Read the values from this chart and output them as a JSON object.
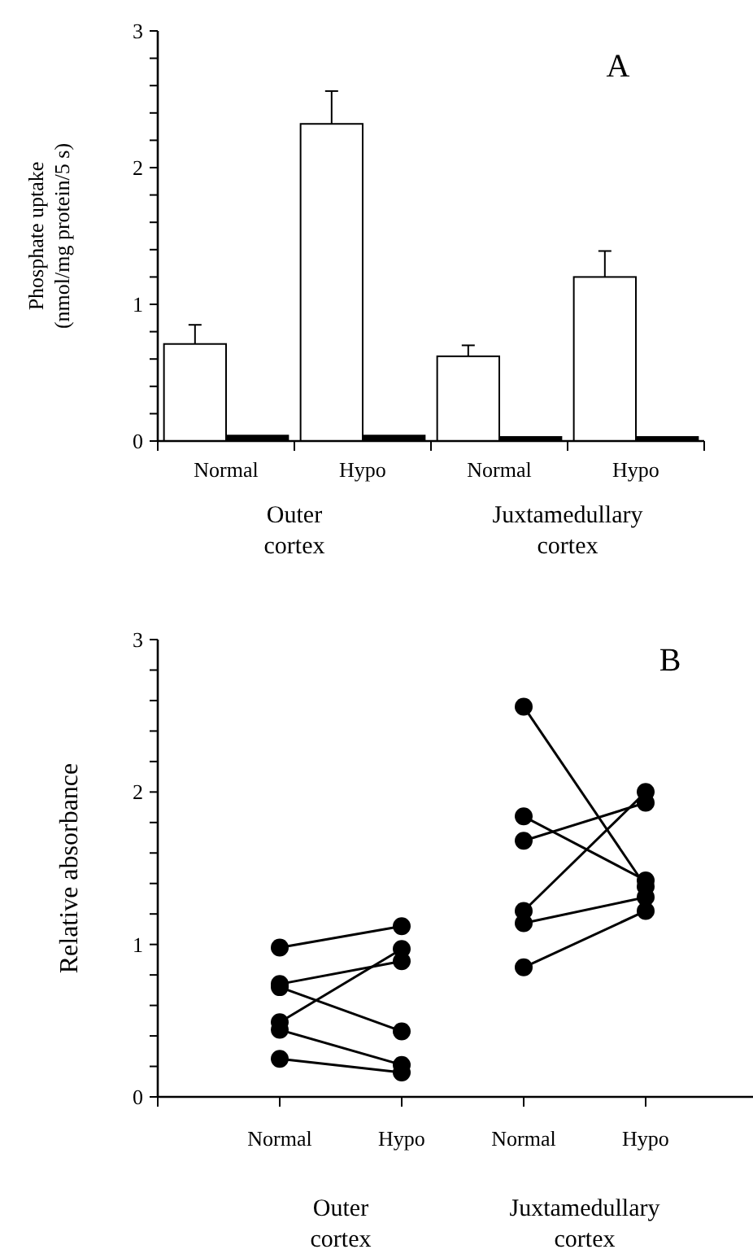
{
  "chart_data": [
    {
      "type": "bar",
      "title": "A",
      "ylabel": "Phosphate uptake\n(nmol/mg protein/5 s)",
      "categories": [
        "Normal",
        "Hypo",
        "Normal",
        "Hypo"
      ],
      "series": [
        {
          "color": "#ffffff",
          "values": [
            0.71,
            2.32,
            0.62,
            1.2
          ],
          "errors": [
            0.14,
            0.24,
            0.08,
            0.19
          ]
        },
        {
          "color": "#000000",
          "values": [
            0.04,
            0.04,
            0.03,
            0.03
          ]
        }
      ],
      "ylim": [
        0,
        3
      ],
      "yticks": [
        0,
        {
          "value": 0.2,
          "label": null
        },
        {
          "value": 0.4,
          "label": null
        },
        {
          "value": 0.6,
          "label": null
        },
        {
          "value": 0.8,
          "label": null
        },
        1,
        {
          "value": 1.2,
          "label": null
        },
        {
          "value": 1.4,
          "label": null
        },
        {
          "value": 1.6,
          "label": null
        },
        {
          "value": 1.8,
          "label": null
        },
        2,
        {
          "value": 2.2,
          "label": null
        },
        {
          "value": 2.4,
          "label": null
        },
        {
          "value": 2.6,
          "label": null
        },
        {
          "value": 2.8,
          "label": null
        },
        3
      ],
      "annotations": [
        "Outer cortex",
        "Juxtamedullary cortex"
      ]
    },
    {
      "type": "line",
      "title": "B",
      "ylabel": "Relative absorbance",
      "categories": [
        "Normal",
        "Hypo",
        "Normal",
        "Hypo"
      ],
      "marker": "circle",
      "series": [
        {
          "color": "#000000",
          "values": [
            0.98,
            1.12,
            null,
            null
          ]
        },
        {
          "color": "#000000",
          "values": [
            0.74,
            0.89,
            null,
            null
          ]
        },
        {
          "color": "#000000",
          "values": [
            0.72,
            0.43,
            null,
            null
          ]
        },
        {
          "color": "#000000",
          "values": [
            0.49,
            0.97,
            null,
            null
          ]
        },
        {
          "color": "#000000",
          "values": [
            0.44,
            0.21,
            null,
            null
          ]
        },
        {
          "color": "#000000",
          "values": [
            0.25,
            0.16,
            null,
            null
          ]
        },
        {
          "color": "#000000",
          "values": [
            null,
            null,
            2.56,
            1.38
          ]
        },
        {
          "color": "#000000",
          "values": [
            null,
            null,
            1.84,
            1.42
          ]
        },
        {
          "color": "#000000",
          "values": [
            null,
            null,
            1.68,
            1.93
          ]
        },
        {
          "color": "#000000",
          "values": [
            null,
            null,
            1.22,
            2.0
          ]
        },
        {
          "color": "#000000",
          "values": [
            null,
            null,
            1.14,
            1.31
          ]
        },
        {
          "color": "#000000",
          "values": [
            null,
            null,
            0.85,
            1.22
          ]
        }
      ],
      "ylim": [
        0,
        3
      ],
      "yticks": [
        0,
        {
          "value": 0.2,
          "label": null
        },
        {
          "value": 0.4,
          "label": null
        },
        {
          "value": 0.6,
          "label": null
        },
        {
          "value": 0.8,
          "label": null
        },
        1,
        {
          "value": 1.2,
          "label": null
        },
        {
          "value": 1.4,
          "label": null
        },
        {
          "value": 1.6,
          "label": null
        },
        {
          "value": 1.8,
          "label": null
        },
        2,
        {
          "value": 2.2,
          "label": null
        },
        {
          "value": 2.4,
          "label": null
        },
        {
          "value": 2.6,
          "label": null
        },
        {
          "value": 2.8,
          "label": null
        },
        3
      ],
      "annotations": [
        "Outer cortex",
        "Juxtamedullary cortex"
      ]
    }
  ]
}
